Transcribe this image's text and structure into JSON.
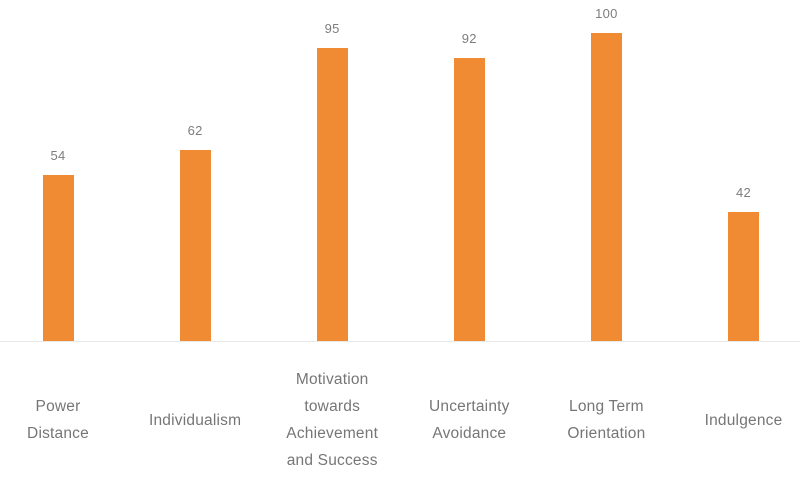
{
  "chart_data": {
    "type": "bar",
    "title": "",
    "xlabel": "",
    "ylabel": "",
    "categories": [
      "Power Distance",
      "Individualism",
      "Motivation towards Achievement and Success",
      "Uncertainty Avoidance",
      "Long Term Orientation",
      "Indulgence"
    ],
    "category_display_lines": [
      [
        "Power",
        "Distance"
      ],
      [
        "Individualism"
      ],
      [
        "Motivation",
        "towards",
        "Achievement",
        "and Success"
      ],
      [
        "Uncertainty",
        "Avoidance"
      ],
      [
        "Long Term",
        "Orientation"
      ],
      [
        "Indulgence"
      ]
    ],
    "values": [
      54,
      62,
      95,
      92,
      100,
      42
    ],
    "data_labels": [
      54,
      62,
      95,
      92,
      100,
      42
    ],
    "ylim": [
      0,
      100
    ],
    "grid": false,
    "legend": false,
    "axis_labels_position": "bottom",
    "colors": {
      "bar": "#F08B33",
      "value_label": "#7D7D7D",
      "category_label": "#767676",
      "axis_line": "#E8E8E8",
      "background": "#FFFFFF"
    }
  }
}
